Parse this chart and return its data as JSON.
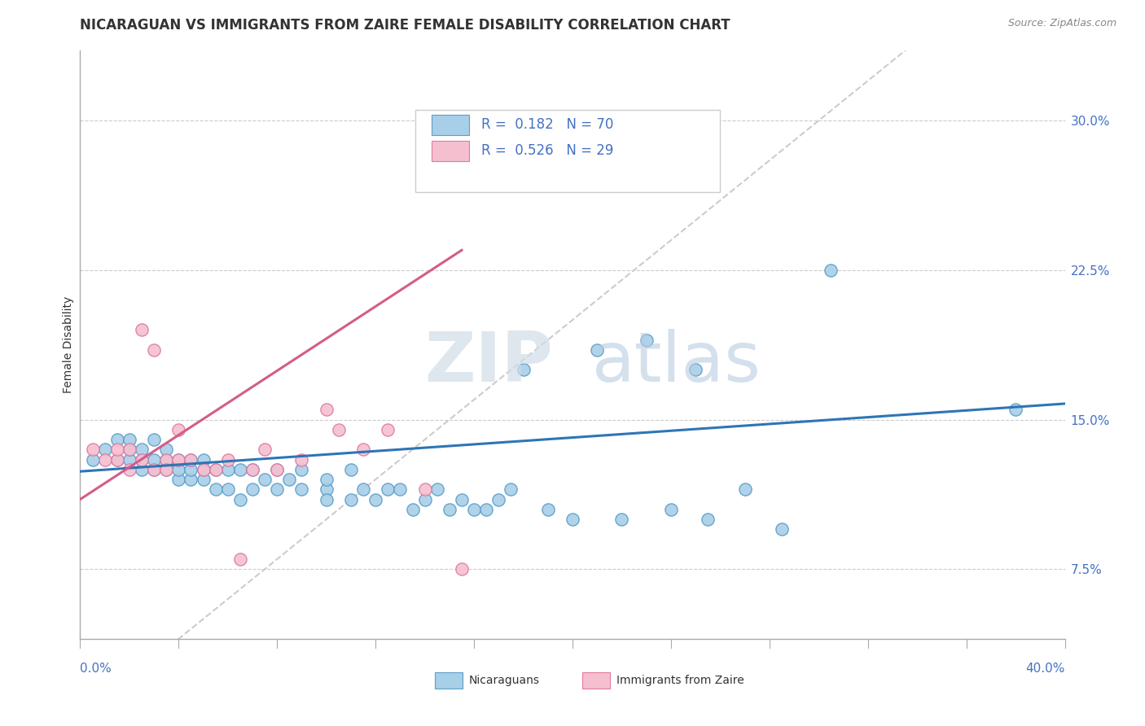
{
  "title": "NICARAGUAN VS IMMIGRANTS FROM ZAIRE FEMALE DISABILITY CORRELATION CHART",
  "source": "Source: ZipAtlas.com",
  "ylabel": "Female Disability",
  "y_ticks": [
    0.075,
    0.15,
    0.225,
    0.3
  ],
  "y_tick_labels": [
    "7.5%",
    "15.0%",
    "22.5%",
    "30.0%"
  ],
  "x_range": [
    0.0,
    0.4
  ],
  "y_range": [
    0.04,
    0.335
  ],
  "legend_r1": "R =  0.182",
  "legend_n1": "N = 70",
  "legend_r2": "R =  0.526",
  "legend_n2": "N = 29",
  "color_blue": "#a8cfe8",
  "color_blue_edge": "#5b9ec9",
  "color_blue_line": "#2e75b6",
  "color_pink": "#f5bfd0",
  "color_pink_edge": "#e07aa0",
  "color_pink_line": "#d45c8a",
  "color_diag": "#cccccc",
  "background": "#ffffff",
  "grid_color": "#cccccc",
  "blue_scatter_x": [
    0.005,
    0.01,
    0.015,
    0.015,
    0.02,
    0.02,
    0.02,
    0.025,
    0.025,
    0.025,
    0.03,
    0.03,
    0.03,
    0.035,
    0.035,
    0.035,
    0.04,
    0.04,
    0.04,
    0.045,
    0.045,
    0.045,
    0.05,
    0.05,
    0.05,
    0.055,
    0.055,
    0.06,
    0.06,
    0.065,
    0.065,
    0.07,
    0.07,
    0.075,
    0.08,
    0.08,
    0.085,
    0.09,
    0.09,
    0.1,
    0.1,
    0.1,
    0.11,
    0.11,
    0.115,
    0.12,
    0.125,
    0.13,
    0.135,
    0.14,
    0.145,
    0.15,
    0.155,
    0.16,
    0.165,
    0.17,
    0.175,
    0.18,
    0.19,
    0.2,
    0.21,
    0.22,
    0.23,
    0.24,
    0.25,
    0.255,
    0.27,
    0.285,
    0.305,
    0.38
  ],
  "blue_scatter_y": [
    0.13,
    0.135,
    0.13,
    0.14,
    0.13,
    0.135,
    0.14,
    0.125,
    0.13,
    0.135,
    0.125,
    0.13,
    0.14,
    0.125,
    0.13,
    0.135,
    0.12,
    0.125,
    0.13,
    0.12,
    0.125,
    0.13,
    0.12,
    0.125,
    0.13,
    0.115,
    0.125,
    0.115,
    0.125,
    0.11,
    0.125,
    0.115,
    0.125,
    0.12,
    0.115,
    0.125,
    0.12,
    0.115,
    0.125,
    0.115,
    0.11,
    0.12,
    0.11,
    0.125,
    0.115,
    0.11,
    0.115,
    0.115,
    0.105,
    0.11,
    0.115,
    0.105,
    0.11,
    0.105,
    0.105,
    0.11,
    0.115,
    0.175,
    0.105,
    0.1,
    0.185,
    0.1,
    0.19,
    0.105,
    0.175,
    0.1,
    0.115,
    0.095,
    0.225,
    0.155
  ],
  "pink_scatter_x": [
    0.005,
    0.01,
    0.015,
    0.015,
    0.02,
    0.02,
    0.025,
    0.025,
    0.03,
    0.03,
    0.035,
    0.035,
    0.04,
    0.04,
    0.045,
    0.05,
    0.055,
    0.06,
    0.065,
    0.07,
    0.075,
    0.08,
    0.09,
    0.1,
    0.105,
    0.115,
    0.125,
    0.14,
    0.155
  ],
  "pink_scatter_y": [
    0.135,
    0.13,
    0.13,
    0.135,
    0.125,
    0.135,
    0.13,
    0.195,
    0.125,
    0.185,
    0.13,
    0.125,
    0.13,
    0.145,
    0.13,
    0.125,
    0.125,
    0.13,
    0.08,
    0.125,
    0.135,
    0.125,
    0.13,
    0.155,
    0.145,
    0.135,
    0.145,
    0.115,
    0.075
  ],
  "blue_trend_x": [
    0.0,
    0.4
  ],
  "blue_trend_y": [
    0.124,
    0.158
  ],
  "pink_trend_x": [
    0.0,
    0.155
  ],
  "pink_trend_y": [
    0.11,
    0.235
  ],
  "watermark_zip": "ZIP",
  "watermark_atlas": "atlas",
  "title_fontsize": 12,
  "axis_label_fontsize": 10,
  "tick_fontsize": 11,
  "legend_fontsize": 12
}
